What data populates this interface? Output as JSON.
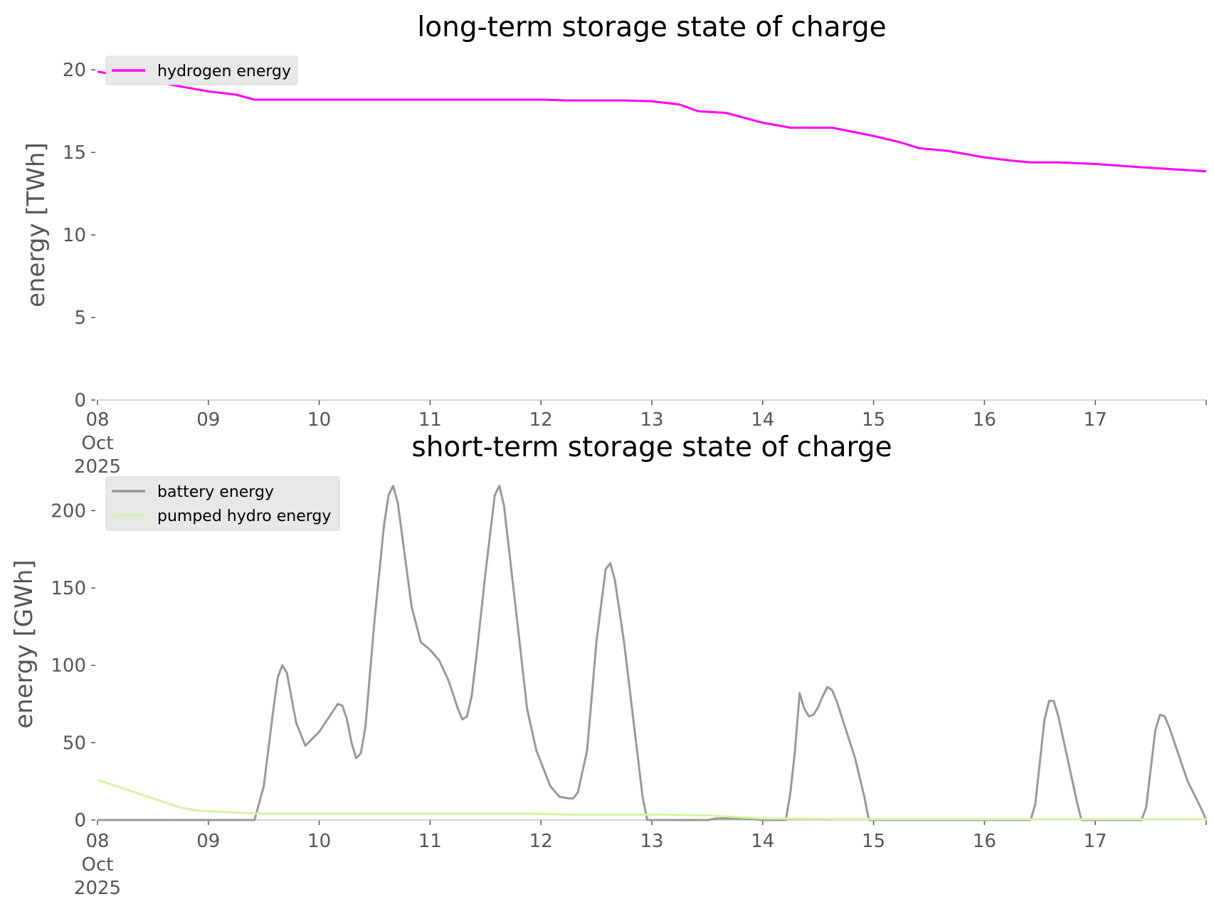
{
  "chart_data": [
    {
      "type": "line",
      "title": "long-term storage state of charge",
      "xlabel": "",
      "ylabel": "energy [TWh]",
      "xlim": [
        "2025-10-08 00:00",
        "2025-10-18 00:00"
      ],
      "ylim": [
        0,
        20.7
      ],
      "grid": false,
      "legend_position": "top-left",
      "x_tick_labels": [
        [
          "08",
          "Oct",
          "2025"
        ],
        [
          "09"
        ],
        [
          "10"
        ],
        [
          "11"
        ],
        [
          "12"
        ],
        [
          "13"
        ],
        [
          "14"
        ],
        [
          "15"
        ],
        [
          "16"
        ],
        [
          "17"
        ],
        []
      ],
      "y_ticks": [
        0,
        5,
        10,
        15,
        20
      ],
      "y_tick_labels": [
        "0",
        "5",
        "10",
        "15",
        "20"
      ],
      "series": [
        {
          "name": "hydrogen energy",
          "color": "#ff00ff",
          "points": [
            [
              "2025-10-08 00:00",
              19.9
            ],
            [
              "2025-10-08 12:00",
              19.3
            ],
            [
              "2025-10-09 00:00",
              18.7
            ],
            [
              "2025-10-09 06:00",
              18.5
            ],
            [
              "2025-10-09 10:00",
              18.2
            ],
            [
              "2025-10-10 00:00",
              18.2
            ],
            [
              "2025-10-11 00:00",
              18.2
            ],
            [
              "2025-10-12 00:00",
              18.2
            ],
            [
              "2025-10-12 06:00",
              18.15
            ],
            [
              "2025-10-12 18:00",
              18.15
            ],
            [
              "2025-10-13 00:00",
              18.1
            ],
            [
              "2025-10-13 06:00",
              17.9
            ],
            [
              "2025-10-13 10:00",
              17.5
            ],
            [
              "2025-10-13 16:00",
              17.4
            ],
            [
              "2025-10-14 00:00",
              16.8
            ],
            [
              "2025-10-14 06:00",
              16.5
            ],
            [
              "2025-10-14 15:00",
              16.5
            ],
            [
              "2025-10-15 00:00",
              16.0
            ],
            [
              "2025-10-15 06:00",
              15.6
            ],
            [
              "2025-10-15 10:00",
              15.25
            ],
            [
              "2025-10-15 16:00",
              15.1
            ],
            [
              "2025-10-16 00:00",
              14.7
            ],
            [
              "2025-10-16 06:00",
              14.5
            ],
            [
              "2025-10-16 10:00",
              14.4
            ],
            [
              "2025-10-16 16:00",
              14.4
            ],
            [
              "2025-10-17 00:00",
              14.3
            ],
            [
              "2025-10-17 10:00",
              14.1
            ],
            [
              "2025-10-17 16:00",
              14.0
            ],
            [
              "2025-10-18 00:00",
              13.85
            ]
          ]
        }
      ]
    },
    {
      "type": "line",
      "title": "short-term storage state of charge",
      "xlabel": "",
      "ylabel": "energy [GWh]",
      "xlim": [
        "2025-10-08 00:00",
        "2025-10-18 00:00"
      ],
      "ylim": [
        0,
        225
      ],
      "grid": false,
      "legend_position": "top-left",
      "x_tick_labels": [
        [
          "08",
          "Oct",
          "2025"
        ],
        [
          "09"
        ],
        [
          "10"
        ],
        [
          "11"
        ],
        [
          "12"
        ],
        [
          "13"
        ],
        [
          "14"
        ],
        [
          "15"
        ],
        [
          "16"
        ],
        [
          "17"
        ],
        []
      ],
      "y_ticks": [
        0,
        50,
        100,
        150,
        200
      ],
      "y_tick_labels": [
        "0",
        "50",
        "100",
        "150",
        "200"
      ],
      "series": [
        {
          "name": "battery energy",
          "color": "#999999",
          "points": [
            [
              "2025-10-08 00:00",
              0
            ],
            [
              "2025-10-09 10:00",
              0
            ],
            [
              "2025-10-09 12:00",
              22
            ],
            [
              "2025-10-09 14:00",
              70
            ],
            [
              "2025-10-09 15:00",
              92
            ],
            [
              "2025-10-09 16:00",
              100
            ],
            [
              "2025-10-09 17:00",
              95
            ],
            [
              "2025-10-09 19:00",
              63
            ],
            [
              "2025-10-09 21:00",
              48
            ],
            [
              "2025-10-10 00:00",
              57
            ],
            [
              "2025-10-10 04:00",
              75
            ],
            [
              "2025-10-10 05:00",
              74
            ],
            [
              "2025-10-10 06:00",
              65
            ],
            [
              "2025-10-10 07:00",
              50
            ],
            [
              "2025-10-10 08:00",
              40
            ],
            [
              "2025-10-10 09:00",
              43
            ],
            [
              "2025-10-10 10:00",
              60
            ],
            [
              "2025-10-10 12:00",
              130
            ],
            [
              "2025-10-10 14:00",
              190
            ],
            [
              "2025-10-10 15:00",
              210
            ],
            [
              "2025-10-10 16:00",
              216
            ],
            [
              "2025-10-10 17:00",
              205
            ],
            [
              "2025-10-10 20:00",
              138
            ],
            [
              "2025-10-10 22:00",
              115
            ],
            [
              "2025-10-11 00:00",
              110
            ],
            [
              "2025-10-11 02:00",
              103
            ],
            [
              "2025-10-11 04:00",
              90
            ],
            [
              "2025-10-11 06:00",
              72
            ],
            [
              "2025-10-11 07:00",
              65
            ],
            [
              "2025-10-11 08:00",
              67
            ],
            [
              "2025-10-11 09:00",
              80
            ],
            [
              "2025-10-11 10:00",
              105
            ],
            [
              "2025-10-11 12:00",
              160
            ],
            [
              "2025-10-11 14:00",
              210
            ],
            [
              "2025-10-11 15:00",
              216
            ],
            [
              "2025-10-11 16:00",
              203
            ],
            [
              "2025-10-11 19:00",
              125
            ],
            [
              "2025-10-11 21:00",
              72
            ],
            [
              "2025-10-11 23:00",
              45
            ],
            [
              "2025-10-12 02:00",
              22
            ],
            [
              "2025-10-12 04:00",
              15
            ],
            [
              "2025-10-12 06:00",
              14
            ],
            [
              "2025-10-12 07:00",
              14
            ],
            [
              "2025-10-12 08:00",
              18
            ],
            [
              "2025-10-12 10:00",
              45
            ],
            [
              "2025-10-12 12:00",
              115
            ],
            [
              "2025-10-12 14:00",
              162
            ],
            [
              "2025-10-12 15:00",
              166
            ],
            [
              "2025-10-12 16:00",
              155
            ],
            [
              "2025-10-12 18:00",
              115
            ],
            [
              "2025-10-12 20:00",
              65
            ],
            [
              "2025-10-12 22:00",
              15
            ],
            [
              "2025-10-12 23:00",
              0
            ],
            [
              "2025-10-13 12:00",
              0
            ],
            [
              "2025-10-13 14:00",
              1
            ],
            [
              "2025-10-13 20:00",
              1
            ],
            [
              "2025-10-14 00:00",
              0
            ],
            [
              "2025-10-14 05:00",
              0
            ],
            [
              "2025-10-14 06:00",
              18
            ],
            [
              "2025-10-14 07:00",
              45
            ],
            [
              "2025-10-14 08:00",
              82
            ],
            [
              "2025-10-14 09:00",
              72
            ],
            [
              "2025-10-14 10:00",
              67
            ],
            [
              "2025-10-14 11:00",
              68
            ],
            [
              "2025-10-14 12:00",
              73
            ],
            [
              "2025-10-14 13:00",
              80
            ],
            [
              "2025-10-14 14:00",
              86
            ],
            [
              "2025-10-14 15:00",
              84
            ],
            [
              "2025-10-14 16:00",
              77
            ],
            [
              "2025-10-14 20:00",
              40
            ],
            [
              "2025-10-14 22:00",
              15
            ],
            [
              "2025-10-14 23:00",
              0
            ],
            [
              "2025-10-16 10:00",
              0
            ],
            [
              "2025-10-16 11:00",
              10
            ],
            [
              "2025-10-16 13:00",
              65
            ],
            [
              "2025-10-16 14:00",
              77
            ],
            [
              "2025-10-16 15:00",
              77
            ],
            [
              "2025-10-16 16:00",
              67
            ],
            [
              "2025-10-16 20:00",
              12
            ],
            [
              "2025-10-16 21:00",
              0
            ],
            [
              "2025-10-17 10:00",
              0
            ],
            [
              "2025-10-17 11:00",
              8
            ],
            [
              "2025-10-17 13:00",
              58
            ],
            [
              "2025-10-17 14:00",
              68
            ],
            [
              "2025-10-17 15:00",
              67
            ],
            [
              "2025-10-17 16:00",
              60
            ],
            [
              "2025-10-17 20:00",
              25
            ],
            [
              "2025-10-17 23:00",
              7
            ],
            [
              "2025-10-18 00:00",
              0
            ]
          ]
        },
        {
          "name": "pumped hydro energy",
          "color": "#d8f5a2",
          "points": [
            [
              "2025-10-08 00:00",
              26
            ],
            [
              "2025-10-08 06:00",
              20
            ],
            [
              "2025-10-08 12:00",
              14
            ],
            [
              "2025-10-08 18:00",
              8
            ],
            [
              "2025-10-08 22:00",
              6
            ],
            [
              "2025-10-09 12:00",
              4
            ],
            [
              "2025-10-10 00:00",
              4
            ],
            [
              "2025-10-11 00:00",
              4
            ],
            [
              "2025-10-12 00:00",
              4
            ],
            [
              "2025-10-12 06:00",
              3.5
            ],
            [
              "2025-10-13 00:00",
              3.5
            ],
            [
              "2025-10-13 12:00",
              3
            ],
            [
              "2025-10-14 00:00",
              1
            ],
            [
              "2025-10-15 00:00",
              0.5
            ],
            [
              "2025-10-16 00:00",
              0.5
            ],
            [
              "2025-10-17 00:00",
              0.5
            ],
            [
              "2025-10-18 00:00",
              0.5
            ]
          ]
        }
      ]
    }
  ]
}
